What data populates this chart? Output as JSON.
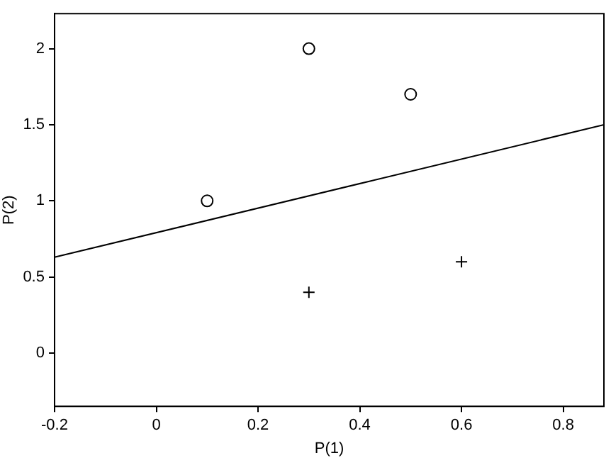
{
  "chart_data": {
    "type": "scatter",
    "xlabel": "P(1)",
    "ylabel": "P(2)",
    "xlim": [
      -0.2,
      0.88
    ],
    "ylim": [
      -0.35,
      2.23
    ],
    "xticks": [
      -0.2,
      0,
      0.2,
      0.4,
      0.6,
      0.8
    ],
    "yticks": [
      0,
      0.5,
      1,
      1.5,
      2
    ],
    "grid": false,
    "legend": false,
    "series": [
      {
        "color": "#000000",
        "marker": "circle",
        "x": [
          0.1,
          0.3,
          0.5
        ],
        "values": [
          1,
          2,
          1.7
        ]
      },
      {
        "color": "#000000",
        "marker": "cross",
        "x": [
          0.3,
          0.6
        ],
        "values": [
          0.4,
          0.6
        ]
      },
      {
        "type": "line",
        "color": "#000000",
        "marker": "none",
        "line_style": "solid",
        "x": [
          -0.2,
          0.88
        ],
        "values": [
          0.63,
          1.5
        ]
      }
    ]
  }
}
